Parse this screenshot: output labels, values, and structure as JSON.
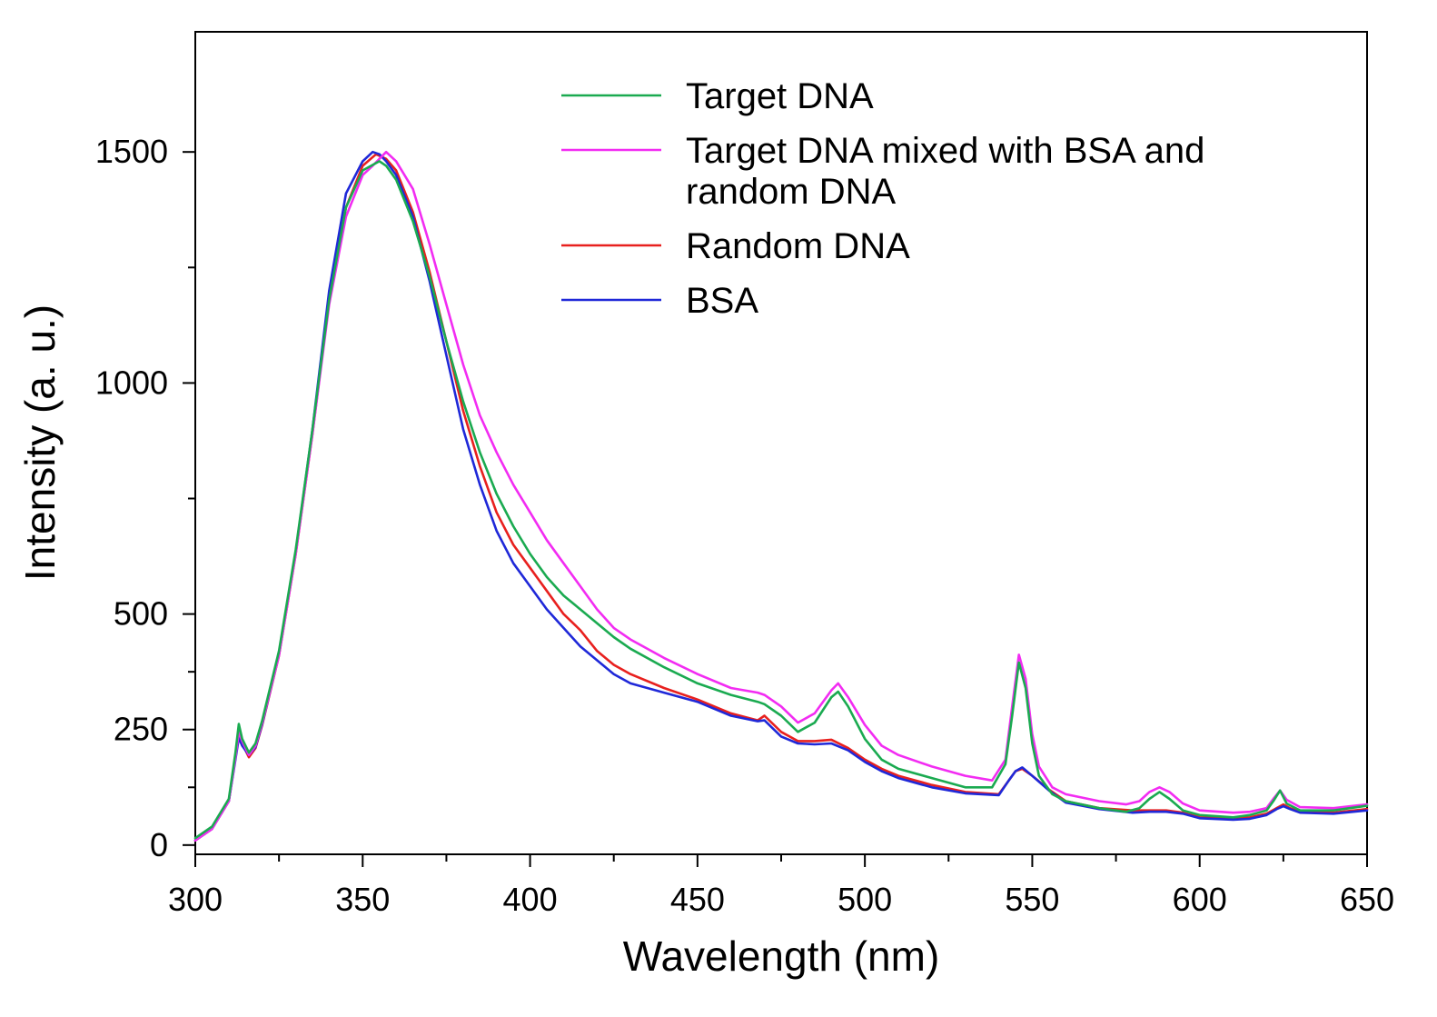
{
  "chart_data": {
    "type": "line",
    "title": "",
    "xlabel": "Wavelength (nm)",
    "ylabel": "Intensity (a. u.)",
    "xlim": [
      300,
      650
    ],
    "ylim": [
      -20,
      1760
    ],
    "x_major_ticks": [
      300,
      350,
      400,
      450,
      500,
      550,
      600,
      650
    ],
    "x_major_tick_labels": [
      "300",
      "350",
      "400",
      "450",
      "500",
      "550",
      "600",
      "650"
    ],
    "y_major_ticks": [
      0,
      250,
      500,
      1000,
      1500
    ],
    "y_major_tick_labels": [
      "0",
      "250",
      "500",
      "1000",
      "1500"
    ],
    "y_minor_ticks": [
      125,
      375,
      750,
      1250
    ],
    "grid": false,
    "legend_position": "top-right",
    "series": [
      {
        "name": "Target DNA",
        "label_lines": [
          "Target DNA"
        ],
        "color": "#1aaa50",
        "x": [
          300,
          305,
          310,
          312,
          313,
          314,
          316,
          318,
          320,
          325,
          330,
          335,
          340,
          345,
          350,
          355,
          357,
          360,
          365,
          370,
          375,
          380,
          385,
          390,
          395,
          400,
          405,
          410,
          415,
          420,
          425,
          430,
          440,
          450,
          460,
          468,
          470,
          475,
          480,
          485,
          490,
          492,
          495,
          500,
          505,
          510,
          520,
          530,
          538,
          542,
          544,
          546,
          548,
          550,
          552,
          556,
          560,
          570,
          578,
          582,
          585,
          588,
          591,
          595,
          600,
          610,
          615,
          620,
          622,
          624,
          626,
          630,
          640,
          650
        ],
        "values": [
          15,
          40,
          100,
          200,
          262,
          230,
          200,
          220,
          270,
          420,
          640,
          900,
          1180,
          1380,
          1460,
          1480,
          1470,
          1440,
          1350,
          1230,
          1090,
          960,
          850,
          760,
          690,
          630,
          580,
          540,
          510,
          480,
          450,
          425,
          385,
          350,
          325,
          310,
          305,
          280,
          245,
          265,
          320,
          332,
          300,
          230,
          185,
          165,
          145,
          125,
          125,
          175,
          280,
          395,
          340,
          220,
          150,
          110,
          95,
          80,
          72,
          80,
          100,
          115,
          100,
          75,
          65,
          60,
          65,
          75,
          95,
          118,
          90,
          75,
          75,
          85
        ]
      },
      {
        "name": "Target DNA mixed with BSA and random DNA",
        "label_lines": [
          "Target DNA mixed with BSA and",
          "random DNA"
        ],
        "color": "#f22cf2",
        "x": [
          300,
          305,
          310,
          312,
          313,
          314,
          316,
          318,
          320,
          325,
          330,
          335,
          340,
          345,
          350,
          353,
          357,
          360,
          365,
          370,
          375,
          380,
          385,
          390,
          395,
          400,
          405,
          410,
          415,
          420,
          425,
          430,
          440,
          450,
          460,
          468,
          470,
          475,
          480,
          485,
          490,
          492,
          495,
          500,
          505,
          510,
          520,
          530,
          538,
          542,
          544,
          546,
          548,
          550,
          552,
          556,
          560,
          570,
          578,
          582,
          585,
          588,
          591,
          595,
          600,
          610,
          615,
          620,
          622,
          624,
          626,
          630,
          640,
          650
        ],
        "values": [
          10,
          35,
          95,
          190,
          245,
          225,
          195,
          215,
          265,
          410,
          630,
          890,
          1170,
          1360,
          1450,
          1470,
          1500,
          1480,
          1420,
          1300,
          1170,
          1040,
          930,
          850,
          780,
          720,
          660,
          610,
          560,
          510,
          470,
          445,
          405,
          370,
          340,
          330,
          325,
          300,
          265,
          285,
          335,
          350,
          320,
          260,
          215,
          195,
          170,
          150,
          140,
          185,
          300,
          412,
          360,
          240,
          170,
          125,
          110,
          95,
          88,
          95,
          115,
          125,
          115,
          90,
          75,
          70,
          72,
          80,
          100,
          118,
          98,
          82,
          80,
          88
        ]
      },
      {
        "name": "Random DNA",
        "label_lines": [
          "Random DNA"
        ],
        "color": "#e8201e",
        "x": [
          300,
          305,
          310,
          312,
          313,
          314,
          316,
          318,
          320,
          325,
          330,
          335,
          340,
          345,
          350,
          354,
          357,
          360,
          365,
          370,
          375,
          380,
          385,
          390,
          395,
          400,
          405,
          410,
          415,
          420,
          425,
          430,
          440,
          450,
          460,
          468,
          470,
          475,
          480,
          485,
          490,
          495,
          500,
          505,
          510,
          520,
          530,
          540,
          543,
          545,
          547,
          550,
          555,
          560,
          570,
          580,
          585,
          590,
          595,
          600,
          610,
          615,
          620,
          623,
          625,
          627,
          630,
          640,
          650
        ],
        "values": [
          10,
          35,
          95,
          190,
          240,
          220,
          190,
          210,
          260,
          410,
          630,
          890,
          1180,
          1380,
          1470,
          1495,
          1485,
          1460,
          1370,
          1240,
          1090,
          940,
          820,
          720,
          650,
          600,
          550,
          500,
          465,
          420,
          390,
          370,
          340,
          315,
          285,
          270,
          280,
          245,
          225,
          225,
          228,
          210,
          185,
          165,
          150,
          130,
          115,
          110,
          140,
          160,
          165,
          150,
          120,
          95,
          80,
          75,
          75,
          75,
          70,
          60,
          58,
          60,
          68,
          80,
          88,
          80,
          72,
          70,
          78
        ]
      },
      {
        "name": "BSA",
        "label_lines": [
          "BSA"
        ],
        "color": "#1f28d8",
        "x": [
          300,
          305,
          310,
          312,
          313,
          314,
          316,
          318,
          320,
          325,
          330,
          335,
          340,
          345,
          350,
          353,
          355,
          357,
          360,
          365,
          370,
          375,
          380,
          385,
          390,
          395,
          400,
          405,
          410,
          415,
          420,
          425,
          430,
          440,
          450,
          460,
          468,
          470,
          475,
          480,
          485,
          490,
          495,
          500,
          505,
          510,
          520,
          530,
          540,
          543,
          545,
          547,
          550,
          555,
          560,
          570,
          580,
          585,
          590,
          595,
          600,
          610,
          615,
          620,
          623,
          625,
          627,
          630,
          640,
          650
        ],
        "values": [
          10,
          35,
          95,
          185,
          232,
          215,
          195,
          212,
          262,
          412,
          635,
          900,
          1200,
          1410,
          1480,
          1500,
          1495,
          1480,
          1450,
          1360,
          1220,
          1060,
          900,
          780,
          680,
          610,
          560,
          510,
          470,
          430,
          400,
          370,
          350,
          330,
          310,
          280,
          268,
          270,
          235,
          220,
          218,
          220,
          205,
          180,
          160,
          145,
          125,
          112,
          108,
          140,
          160,
          168,
          150,
          118,
          92,
          78,
          70,
          72,
          72,
          68,
          58,
          55,
          57,
          65,
          78,
          84,
          78,
          70,
          68,
          75
        ]
      }
    ]
  }
}
